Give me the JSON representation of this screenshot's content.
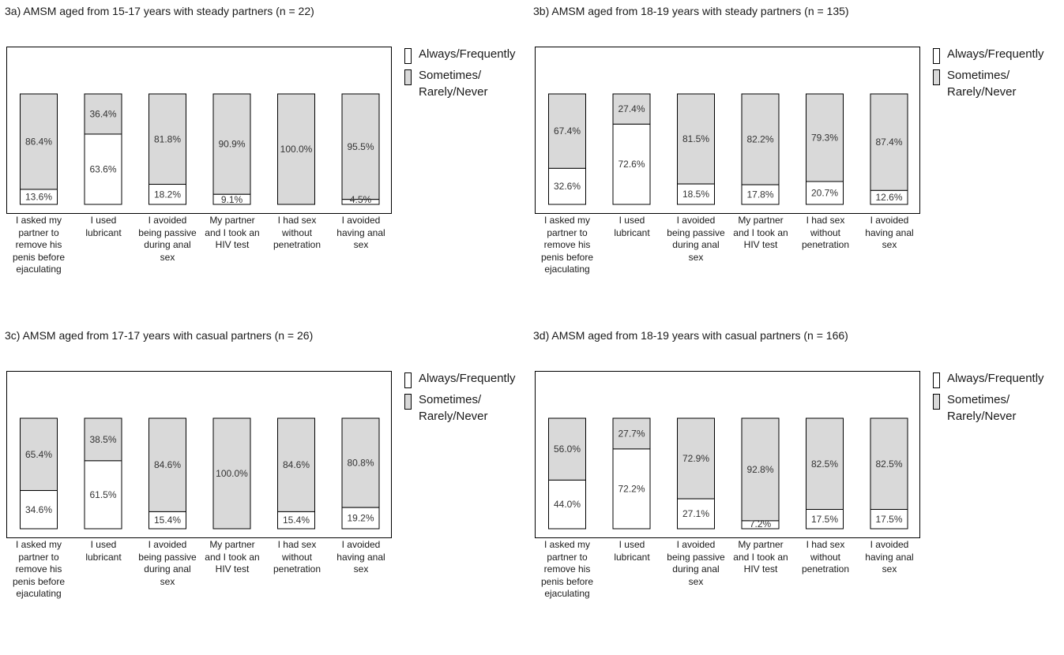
{
  "colors": {
    "always": "#ffffff",
    "sometimes": "#d9d9d9",
    "stroke": "#000000"
  },
  "legend": {
    "always": "Always/Frequently",
    "sometimes": "Sometimes/\nRarely/Never"
  },
  "chart_data": [
    {
      "type": "bar",
      "stacked": true,
      "title": "3a) AMSM aged from 15-17 years with steady partners (n = 22)",
      "categories": [
        "I asked my partner to remove his penis before ejaculating",
        "I used lubricant",
        "I avoided being passive during anal sex",
        "My partner and I took an HIV test",
        "I had sex without penetration",
        "I avoided having anal sex"
      ],
      "series": [
        {
          "name": "Always/Frequently",
          "values": [
            13.6,
            63.6,
            18.2,
            9.1,
            0.0,
            4.5
          ],
          "labels": [
            "13.6%",
            "63.6%",
            "18.2%",
            "9.1%",
            "",
            "4.5%"
          ]
        },
        {
          "name": "Sometimes/Rarely/Never",
          "values": [
            86.4,
            36.4,
            81.8,
            90.9,
            100.0,
            95.5
          ],
          "labels": [
            "86.4%",
            "36.4%",
            "81.8%",
            "90.9%",
            "100.0%",
            "95.5%"
          ]
        }
      ],
      "ylim": [
        0,
        100
      ],
      "grid": false,
      "legend_position": "right"
    },
    {
      "type": "bar",
      "stacked": true,
      "title": "3b) AMSM aged from 18-19 years with steady partners (n = 135)",
      "categories": [
        "I asked my partner to remove his penis before ejaculating",
        "I used lubricant",
        "I avoided being passive during anal sex",
        "My partner and I took an HIV test",
        "I had sex without penetration",
        "I avoided having anal sex"
      ],
      "series": [
        {
          "name": "Always/Frequently",
          "values": [
            32.6,
            72.6,
            18.5,
            17.8,
            20.7,
            12.6
          ],
          "labels": [
            "32.6%",
            "72.6%",
            "18.5%",
            "17.8%",
            "20.7%",
            "12.6%"
          ]
        },
        {
          "name": "Sometimes/Rarely/Never",
          "values": [
            67.4,
            27.4,
            81.5,
            82.2,
            79.3,
            87.4
          ],
          "labels": [
            "67.4%",
            "27.4%",
            "81.5%",
            "82.2%",
            "79.3%",
            "87.4%"
          ]
        }
      ],
      "ylim": [
        0,
        100
      ],
      "grid": false,
      "legend_position": "right"
    },
    {
      "type": "bar",
      "stacked": true,
      "title": "3c) AMSM aged from 17-17 years with casual partners (n = 26)",
      "categories": [
        "I asked my partner to remove his penis before ejaculating",
        "I used lubricant",
        "I avoided being passive during anal sex",
        "My partner and I took an HIV test",
        "I had sex without penetration",
        "I avoided having anal sex"
      ],
      "series": [
        {
          "name": "Always/Frequently",
          "values": [
            34.6,
            61.5,
            15.4,
            0.0,
            15.4,
            19.2
          ],
          "labels": [
            "34.6%",
            "61.5%",
            "15.4%",
            "",
            "15.4%",
            "19.2%"
          ]
        },
        {
          "name": "Sometimes/Rarely/Never",
          "values": [
            65.4,
            38.5,
            84.6,
            100.0,
            84.6,
            80.8
          ],
          "labels": [
            "65.4%",
            "38.5%",
            "84.6%",
            "100.0%",
            "84.6%",
            "80.8%"
          ]
        }
      ],
      "ylim": [
        0,
        100
      ],
      "grid": false,
      "legend_position": "right"
    },
    {
      "type": "bar",
      "stacked": true,
      "title": "3d) AMSM aged from 18-19 years with casual partners (n = 166)",
      "categories": [
        "I asked my partner to remove his penis before ejaculating",
        "I used lubricant",
        "I avoided being passive during anal sex",
        "My partner and I took an HIV test",
        "I had sex without penetration",
        "I avoided having anal sex"
      ],
      "series": [
        {
          "name": "Always/Frequently",
          "values": [
            44.0,
            72.2,
            27.1,
            7.2,
            17.5,
            17.5
          ],
          "labels": [
            "44.0%",
            "72.2%",
            "27.1%",
            "7.2%",
            "17.5%",
            "17.5%"
          ]
        },
        {
          "name": "Sometimes/Rarely/Never",
          "values": [
            56.0,
            27.7,
            72.9,
            92.8,
            82.5,
            82.5
          ],
          "labels": [
            "56.0%",
            "27.7%",
            "72.9%",
            "92.8%",
            "82.5%",
            "82.5%"
          ]
        }
      ],
      "ylim": [
        0,
        100
      ],
      "grid": false,
      "legend_position": "right"
    }
  ]
}
